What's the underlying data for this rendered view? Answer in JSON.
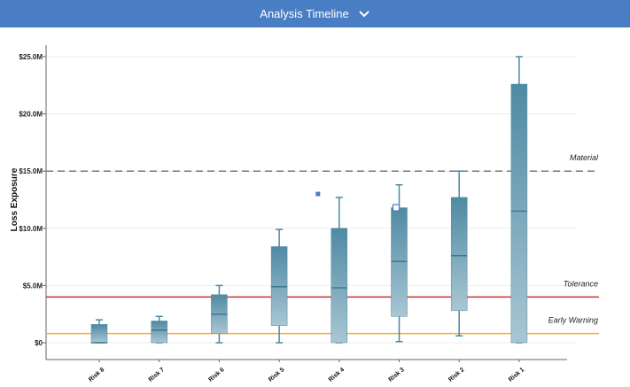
{
  "header": {
    "title": "Analysis Timeline",
    "dropdown_icon": "chevron-down-icon",
    "background": "#4a7ec4"
  },
  "chart_data": {
    "type": "boxplot",
    "ylabel": "Loss Exposure",
    "ylim": [
      -1.5,
      27
    ],
    "yticks": [
      {
        "value": 0,
        "label": "$0"
      },
      {
        "value": 5,
        "label": "$5.0M"
      },
      {
        "value": 10,
        "label": "$10.0M"
      },
      {
        "value": 15,
        "label": "$15.0M"
      },
      {
        "value": 20,
        "label": "$20.0M"
      },
      {
        "value": 25,
        "label": "$25.0M"
      }
    ],
    "grid": true,
    "categories": [
      "Risk 8",
      "Risk 7",
      "Risk 6",
      "Risk 5",
      "Risk 4",
      "Risk 3",
      "Risk 2",
      "Risk 1"
    ],
    "boxes": [
      {
        "min": 0.0,
        "q1": 0.0,
        "median": 0.0,
        "q3": 1.6,
        "max": 2.0
      },
      {
        "min": 0.0,
        "q1": 0.0,
        "median": 1.1,
        "q3": 1.9,
        "max": 2.3
      },
      {
        "min": 0.0,
        "q1": 0.8,
        "median": 2.5,
        "q3": 4.2,
        "max": 5.0
      },
      {
        "min": 0.0,
        "q1": 1.5,
        "median": 4.9,
        "q3": 8.4,
        "max": 9.9
      },
      {
        "min": 0.0,
        "q1": 0.0,
        "median": 4.8,
        "q3": 10.0,
        "max": 12.7
      },
      {
        "min": 0.1,
        "q1": 2.3,
        "median": 7.1,
        "q3": 11.8,
        "max": 13.8
      },
      {
        "min": 0.6,
        "q1": 2.8,
        "median": 7.6,
        "q3": 12.7,
        "max": 15.0
      },
      {
        "min": 0.0,
        "q1": 0.0,
        "median": 11.5,
        "q3": 22.6,
        "max": 25.0
      }
    ],
    "outliers": [
      {
        "category": "Risk 4",
        "value": 13.0,
        "style": "filled",
        "color": "#4a7ec4"
      },
      {
        "category": "Risk 3",
        "value": 11.8,
        "style": "hollow",
        "color": "#4a7ec4"
      }
    ],
    "thresholds": [
      {
        "name": "Material",
        "value": 15.0,
        "color": "#777777",
        "style": "dashed"
      },
      {
        "name": "Tolerance",
        "value": 4.0,
        "color": "#cc3333",
        "style": "solid"
      },
      {
        "name": "Early Warning",
        "value": 0.8,
        "color": "#f0b030",
        "style": "solid"
      }
    ],
    "colors": {
      "box_top": "#4f8aa3",
      "box_bottom": "#a9c6d3",
      "whisker": "#4a88a4",
      "median": "#3e7891",
      "grid": "#eeeeee",
      "axis": "#666666"
    }
  }
}
